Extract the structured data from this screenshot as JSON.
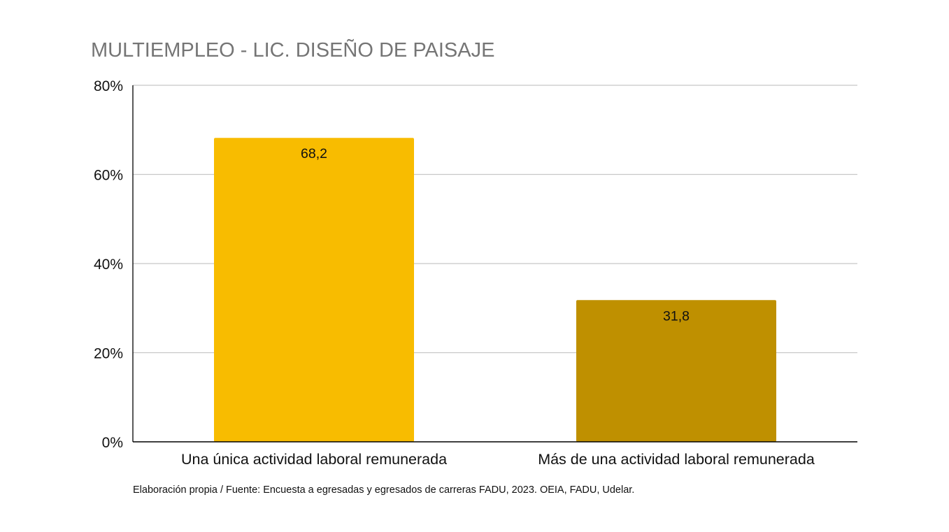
{
  "chart_data": {
    "type": "bar",
    "title": "MULTIEMPLEO - LIC. DISEÑO DE PAISAJE",
    "categories": [
      "Una única actividad laboral remunerada",
      "Más de una actividad laboral remunerada"
    ],
    "values": [
      68.2,
      31.8
    ],
    "value_labels": [
      "68,2",
      "31,8"
    ],
    "bar_colors": [
      "#F8BC00",
      "#BF9000"
    ],
    "ylim": [
      0,
      80
    ],
    "yticks": [
      0,
      20,
      40,
      60,
      80
    ],
    "ytick_labels": [
      "0%",
      "20%",
      "40%",
      "60%",
      "80%"
    ],
    "grid": true,
    "legend": "none",
    "source": "Elaboración propia / Fuente: Encuesta a egresadas y egresados de carreras FADU, 2023. OEIA, FADU, Udelar."
  }
}
